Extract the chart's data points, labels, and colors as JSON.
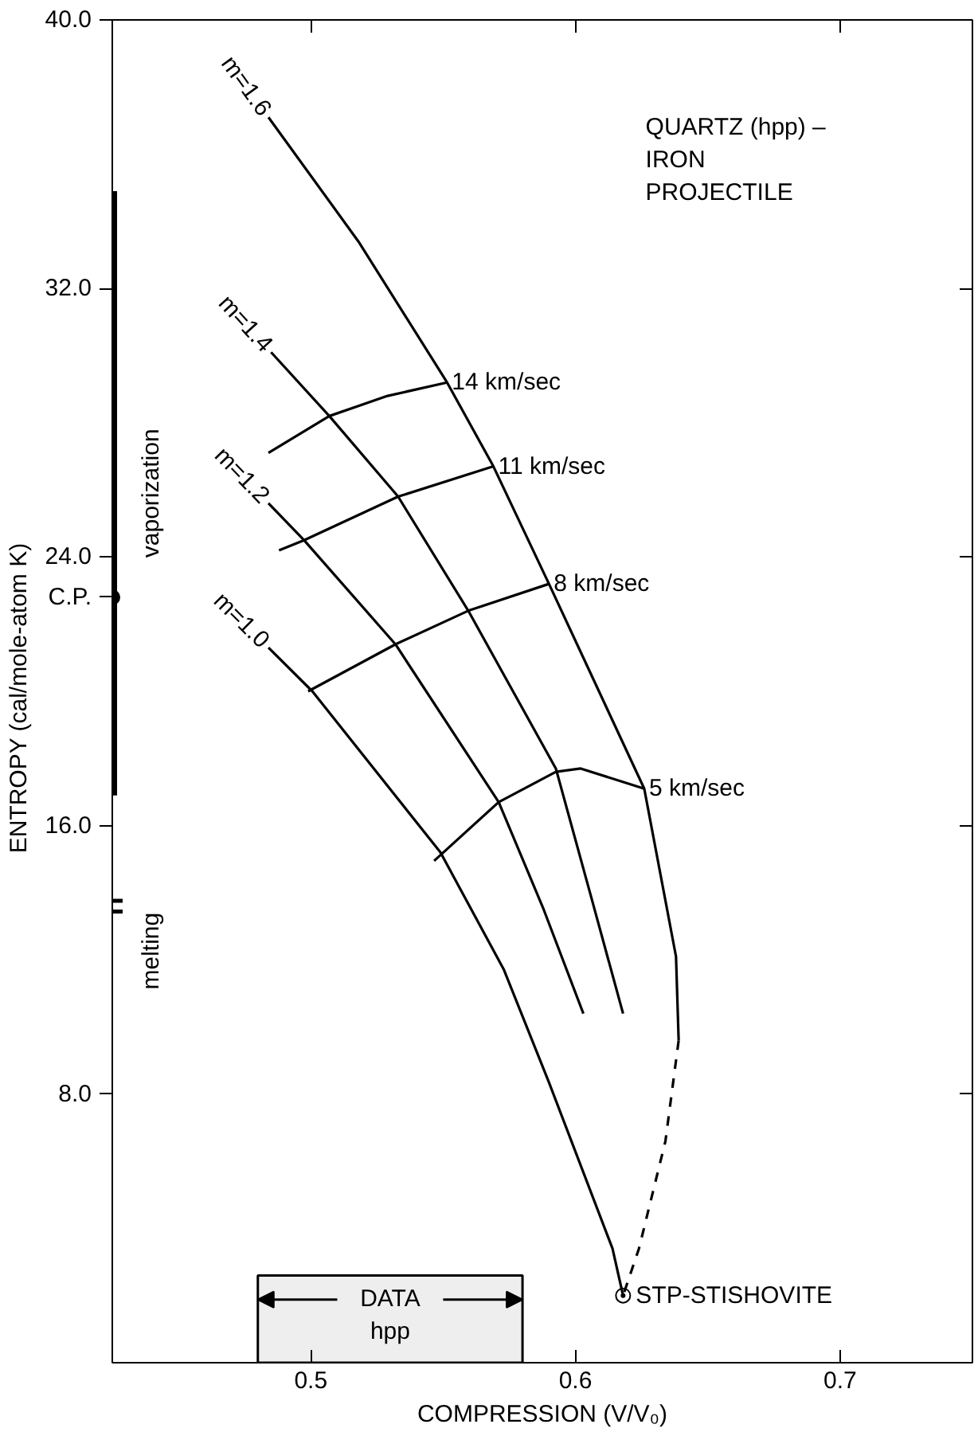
{
  "chart_data": {
    "type": "line",
    "title": "QUARTZ (hpp) –\nIRON\nPROJECTILE",
    "xlabel": "COMPRESSION (V/V₀)",
    "ylabel": "ENTROPY  (cal/mole-atom  K)",
    "xlim": [
      0.425,
      0.75
    ],
    "ylim": [
      0,
      40
    ],
    "xticks": [
      0.5,
      0.6,
      0.7
    ],
    "yticks": [
      {
        "value": 8,
        "label": "8.0"
      },
      {
        "value": 16,
        "label": "16.0"
      },
      {
        "value": 24,
        "label": "24.0"
      },
      {
        "value": 32,
        "label": "32.0"
      },
      {
        "value": 40,
        "label": "40.0"
      }
    ],
    "series": [
      {
        "name": "m=1.6",
        "color": "#000000",
        "x": [
          0.484,
          0.518,
          0.5515,
          0.569,
          0.59,
          0.626,
          0.638,
          0.639
        ],
        "values": [
          37.1,
          33.4,
          29.2,
          26.7,
          23.2,
          17.1,
          12.1,
          9.6
        ]
      },
      {
        "color": "#000000",
        "line_style": "dashed",
        "x": [
          0.639,
          0.634,
          0.624,
          0.618
        ],
        "values": [
          9.6,
          6.6,
          3.4,
          2.0
        ]
      },
      {
        "name": "m=1.4",
        "color": "#000000",
        "x": [
          0.485,
          0.507,
          0.533,
          0.5595,
          0.5926,
          0.6055,
          0.618
        ],
        "values": [
          30.1,
          28.2,
          25.8,
          22.4,
          17.7,
          14.0,
          10.4
        ]
      },
      {
        "name": "m=1.2",
        "color": "#000000",
        "x": [
          0.484,
          0.4975,
          0.532,
          0.571,
          0.588,
          0.603
        ],
        "values": [
          25.6,
          24.5,
          21.4,
          16.7,
          13.5,
          10.4
        ]
      },
      {
        "name": "m=1.0",
        "color": "#000000",
        "x": [
          0.484,
          0.5006,
          0.549,
          0.573,
          0.59,
          0.614,
          0.618
        ],
        "values": [
          21.3,
          20.0,
          15.2,
          11.7,
          8.35,
          3.4,
          2.0
        ]
      },
      {
        "name": "14 km/sec",
        "color": "#000000",
        "x": [
          0.484,
          0.507,
          0.529,
          0.5515
        ],
        "values": [
          27.1,
          28.2,
          28.8,
          29.2
        ]
      },
      {
        "name": "11 km/sec",
        "color": "#000000",
        "x": [
          0.488,
          0.4975,
          0.533,
          0.569
        ],
        "values": [
          24.2,
          24.5,
          25.8,
          26.7
        ]
      },
      {
        "name": "8 km/sec",
        "color": "#000000",
        "x": [
          0.499,
          0.532,
          0.5595,
          0.59
        ],
        "values": [
          20.0,
          21.4,
          22.4,
          23.2
        ]
      },
      {
        "name": "5 km/sec",
        "color": "#000000",
        "x": [
          0.5466,
          0.571,
          0.5926,
          0.602,
          0.626
        ],
        "values": [
          14.95,
          16.7,
          17.6,
          17.7,
          17.1
        ]
      },
      {
        "name": "vaporization",
        "color": "#000000",
        "x": [
          0.425,
          0.425
        ],
        "values": [
          16.9,
          34.9
        ]
      },
      {
        "type": "scatter",
        "marker": "circle",
        "name": "C.P.",
        "color": "#000000",
        "x": [
          0.425
        ],
        "values": [
          22.8
        ]
      }
    ],
    "bands": [
      {
        "axis": "x",
        "from": 0.48,
        "to": 0.58,
        "label": "DATA\nhpp",
        "color": "#eeeeee"
      }
    ],
    "ref_lines": [
      {
        "axis": "y",
        "value": 13.6,
        "label": "melting"
      }
    ],
    "annotations": [
      {
        "text": "STP-STISHOVITE",
        "x": 0.618,
        "y": 2.0
      }
    ]
  }
}
